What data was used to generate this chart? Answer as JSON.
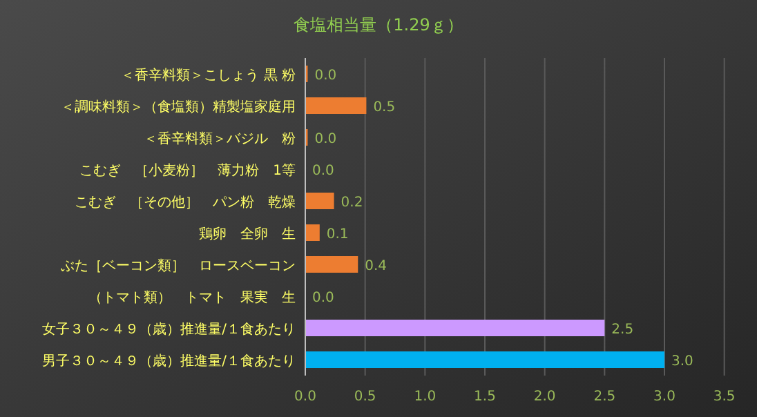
{
  "chart_data": {
    "type": "bar",
    "orientation": "horizontal",
    "title": "食塩相当量（1.29ｇ）",
    "categories": [
      "＜香辛料類＞こしょう 黒 粉",
      "＜調味料類＞（食塩類）精製塩家庭用",
      "＜香辛料類＞バジル　粉",
      "こむぎ　［小麦粉］　薄力粉　1等",
      "こむぎ　［その他］　パン粉　乾燥",
      "鶏卵　全卵　生",
      "ぶた［ベーコン類］　ロースベーコン",
      "（トマト類）　トマト　果実　生",
      "女子３０～４９（歳）推進量/１食あたり",
      "男子３０～４９（歳）推進量/１食あたり"
    ],
    "values": [
      0.02,
      0.51,
      0.02,
      0,
      0.24,
      0.12,
      0.44,
      0,
      2.5,
      3.0
    ],
    "value_labels": [
      "0.0",
      "0.5",
      "0.0",
      "0.0",
      "0.2",
      "0.1",
      "0.4",
      "0.0",
      "2.5",
      "3.0"
    ],
    "colors": [
      "#ed7d31",
      "#ed7d31",
      "#ed7d31",
      "#ed7d31",
      "#ed7d31",
      "#ed7d31",
      "#ed7d31",
      "#ed7d31",
      "#cc99ff",
      "#00b0f0"
    ],
    "xlim": [
      0,
      3.5
    ],
    "xticks": [
      {
        "value": 0,
        "label": "0.0"
      },
      {
        "value": 0.5,
        "label": "0.5"
      },
      {
        "value": 1,
        "label": "1.0"
      },
      {
        "value": 1.5,
        "label": "1.5"
      },
      {
        "value": 2,
        "label": "2.0"
      },
      {
        "value": 2.5,
        "label": "2.5"
      },
      {
        "value": 3,
        "label": "3.0"
      },
      {
        "value": 3.5,
        "label": "3.5"
      }
    ],
    "grid": "x"
  }
}
